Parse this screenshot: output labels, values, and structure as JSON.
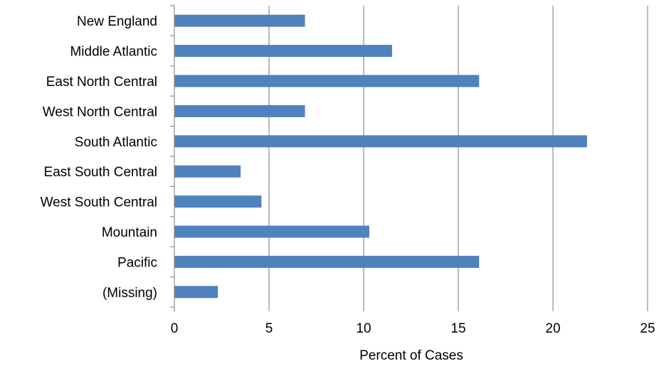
{
  "chart_data": {
    "type": "bar",
    "orientation": "horizontal",
    "categories": [
      "New England",
      "Middle Atlantic",
      "East North Central",
      "West North Central",
      "South Atlantic",
      "East South Central",
      "West South Central",
      "Mountain",
      "Pacific",
      "(Missing)"
    ],
    "values": [
      6.9,
      11.5,
      16.1,
      6.9,
      21.8,
      3.5,
      4.6,
      10.3,
      16.1,
      2.3
    ],
    "title": "",
    "xlabel": "Percent of Cases",
    "ylabel": "",
    "xlim": [
      0,
      25
    ],
    "xticks": [
      0,
      5,
      10,
      15,
      20,
      25
    ],
    "grid": true,
    "legend": "none",
    "bar_color": "#4f81bd",
    "grid_color": "#8c8c8c"
  }
}
